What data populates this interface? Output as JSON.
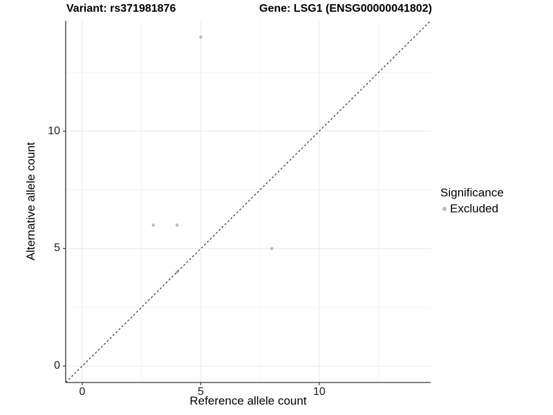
{
  "chart_data": {
    "type": "scatter",
    "title_left": "Variant: rs371981876",
    "title_right": "Gene: LSG1 (ENSG00000041802)",
    "xlabel": "Reference allele count",
    "ylabel": "Alternative allele count",
    "xlim": [
      -0.7,
      14.7
    ],
    "ylim": [
      -0.7,
      14.7
    ],
    "x_ticks": [
      0,
      5,
      10
    ],
    "y_ticks": [
      0,
      5,
      10
    ],
    "x_minor_ticks": [
      2.5,
      7.5,
      12.5
    ],
    "y_minor_ticks": [
      2.5,
      7.5,
      12.5
    ],
    "grid": "major+minor",
    "series": [
      {
        "name": "Excluded",
        "color": "#bdbdbd",
        "points": [
          [
            3,
            6
          ],
          [
            4,
            6
          ],
          [
            4,
            4
          ],
          [
            5,
            14
          ],
          [
            8,
            5
          ]
        ]
      }
    ],
    "identity_line": {
      "slope": 1,
      "intercept": 0,
      "style": "dashed",
      "color": "#1a1a1a"
    },
    "legend": {
      "title": "Significance",
      "position": "right",
      "entries": [
        {
          "label": "Excluded",
          "color": "#bdbdbd"
        }
      ]
    }
  },
  "colors": {
    "background": "#ffffff",
    "grid_major": "#e8e8e8",
    "grid_minor": "#f4f4f4",
    "axis_line": "#333333",
    "tick": "#333333",
    "point": "#bdbdbd"
  }
}
